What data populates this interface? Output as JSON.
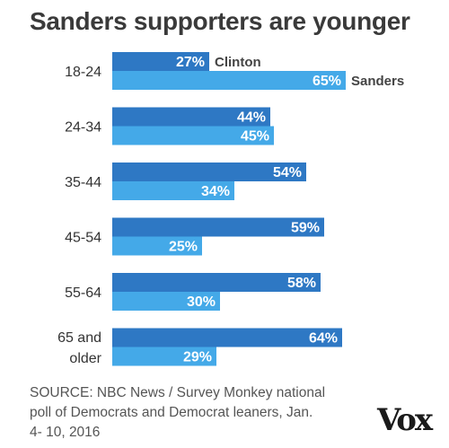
{
  "title": "Sanders supporters are younger",
  "source": "SOURCE: NBC News / Survey Monkey national poll of Democrats and Democrat leaners, Jan. 4- 10, 2016",
  "logo": "Vox",
  "chart_data": {
    "type": "bar",
    "orientation": "horizontal",
    "title": "Sanders supporters are younger",
    "categories": [
      [
        "18-24"
      ],
      [
        "24-34"
      ],
      [
        "35-44"
      ],
      [
        "45-54"
      ],
      [
        "55-64"
      ],
      [
        "65 and",
        "older"
      ]
    ],
    "series": [
      {
        "name": "Clinton",
        "values": [
          27,
          44,
          54,
          59,
          58,
          64
        ],
        "color": "#2e78c4"
      },
      {
        "name": "Sanders",
        "values": [
          65,
          45,
          34,
          25,
          30,
          29
        ],
        "color": "#44a9e8"
      }
    ],
    "value_suffix": "%",
    "legend": "inline labels on first group",
    "grid": false
  }
}
